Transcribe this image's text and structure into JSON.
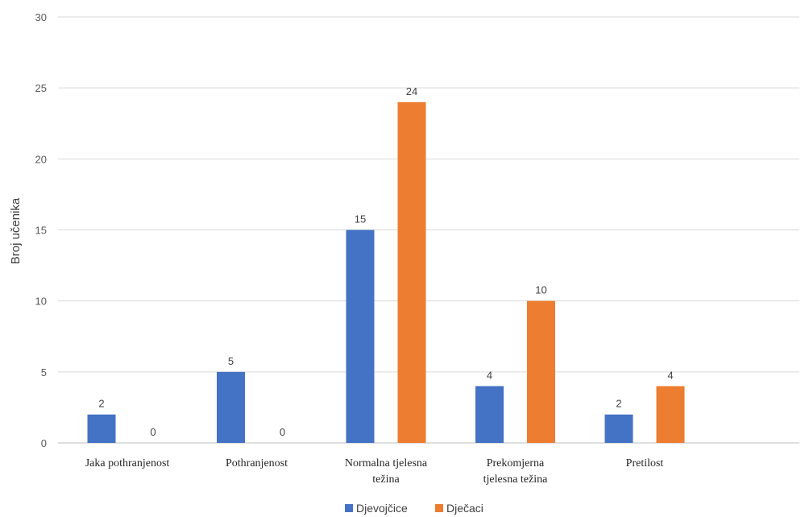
{
  "chart_data": {
    "type": "bar",
    "title": "",
    "ylabel": "Broj učenika",
    "xlabel": "",
    "ylim": [
      0,
      30
    ],
    "yticks": [
      0,
      5,
      10,
      15,
      20,
      25,
      30
    ],
    "grid": true,
    "legend_position": "bottom",
    "categories": [
      [
        "Jaka pothranjenost"
      ],
      [
        "Pothranjenost"
      ],
      [
        "Normalna tjelesna",
        "težina"
      ],
      [
        "Prekomjerna",
        "tjelesna težina"
      ],
      [
        "Pretilost"
      ]
    ],
    "series": [
      {
        "name": "Djevojčice",
        "color": "#4472c4",
        "values": [
          2,
          5,
          15,
          4,
          2
        ]
      },
      {
        "name": "Dječaci",
        "color": "#ed7d31",
        "values": [
          0,
          0,
          24,
          10,
          4
        ]
      }
    ]
  }
}
